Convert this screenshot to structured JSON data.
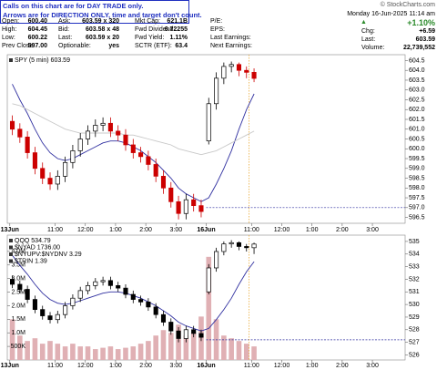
{
  "header": {
    "banner": [
      "Calls on this chart are for DAY TRADE only.",
      "Arrows are for DIRECTION ONLY, time and target don't count."
    ],
    "quote": [
      [
        [
          "Open:",
          "600.40"
        ],
        [
          "High:",
          "604.45"
        ],
        [
          "Low:",
          "600.22"
        ],
        [
          "Prev Close:",
          "597.00"
        ]
      ],
      [
        [
          "Ask:",
          "603.59 x 320"
        ],
        [
          "Bid:",
          "603.58 x 48"
        ],
        [
          "Last:",
          "603.59 x 20"
        ],
        [
          "Optionable:",
          "yes"
        ]
      ],
      [
        [
          "Mkt Cap:",
          "621.1B"
        ],
        [
          "Fwd Dividend:",
          "6.72255"
        ],
        [
          "Fwd Yield:",
          "1.11%"
        ],
        [
          "SCTR (ETF):",
          "63.4"
        ]
      ],
      [
        [
          "P/E:"
        ],
        [
          "EPS:"
        ],
        [
          "Last Earnings:"
        ],
        [
          "Next Earnings:"
        ]
      ]
    ],
    "site": "© StockCharts.com",
    "datetime": "Monday 16-Jun-2025 11:14 am",
    "change_pct": "+1.10%",
    "stats": [
      [
        "Chg:",
        "+6.59"
      ],
      [
        "Last:",
        "603.59"
      ],
      [
        "Volume:",
        "22,739,552"
      ]
    ]
  },
  "chart_data": [
    {
      "type": "candlestick",
      "legend": [
        "SPY (5 min) 603.59"
      ],
      "x": [
        1,
        4,
        7,
        10,
        13,
        16,
        19,
        22,
        25,
        28,
        31,
        34,
        37,
        40,
        43,
        46,
        49,
        52,
        55,
        58,
        61,
        64,
        67,
        70,
        73,
        76,
        79,
        82,
        85,
        88,
        91,
        94,
        97
      ],
      "open": [
        601.4,
        601.0,
        600.6,
        599.8,
        599.0,
        598.5,
        598.2,
        598.6,
        599.3,
        599.9,
        600.5,
        600.9,
        601.2,
        601.3,
        600.9,
        600.7,
        600.2,
        599.8,
        599.6,
        599.2,
        598.6,
        598.0,
        597.3,
        596.7,
        597.4,
        597.1,
        600.4,
        602.3,
        603.6,
        604.2,
        604.3,
        604.0,
        603.9
      ],
      "high": [
        601.7,
        601.3,
        600.9,
        600.1,
        599.3,
        598.8,
        598.9,
        599.6,
        600.2,
        600.8,
        601.2,
        601.5,
        601.6,
        601.6,
        601.2,
        601.0,
        600.5,
        600.1,
        599.9,
        599.5,
        598.9,
        598.3,
        597.6,
        597.7,
        597.7,
        597.4,
        602.6,
        603.9,
        604.4,
        604.45,
        604.4,
        604.2,
        604.1
      ],
      "low": [
        600.7,
        600.3,
        599.5,
        598.7,
        598.2,
        597.9,
        597.9,
        598.3,
        599.0,
        599.6,
        600.2,
        600.6,
        600.9,
        600.6,
        600.4,
        599.9,
        599.5,
        599.3,
        598.9,
        598.3,
        597.7,
        597.0,
        596.4,
        596.4,
        596.8,
        596.5,
        600.22,
        602.0,
        603.3,
        603.9,
        603.7,
        603.6,
        603.4
      ],
      "close": [
        601.0,
        600.6,
        599.8,
        599.0,
        598.5,
        598.2,
        598.6,
        599.3,
        599.9,
        600.5,
        600.9,
        601.2,
        601.3,
        600.9,
        600.7,
        600.2,
        599.8,
        599.6,
        599.2,
        598.6,
        598.0,
        597.3,
        596.7,
        597.4,
        597.1,
        596.8,
        602.3,
        603.6,
        604.2,
        604.3,
        604.0,
        603.9,
        603.59
      ],
      "up_color": "#000000",
      "down_color": "#cc0000",
      "overlays": [
        {
          "color": "#3030a0",
          "values": [
            603.3,
            602.5,
            601.8,
            601.0,
            600.3,
            599.8,
            599.5,
            599.4,
            599.5,
            599.7,
            599.9,
            600.1,
            600.3,
            600.4,
            600.4,
            600.3,
            600.1,
            599.9,
            599.6,
            599.3,
            598.9,
            598.5,
            598.0,
            597.7,
            597.5,
            597.3,
            597.5,
            598.2,
            599.0,
            599.9,
            601.0,
            602.0,
            602.8
          ]
        },
        {
          "color": "#c8c8c8",
          "values": [
            602.3,
            602.2,
            602.0,
            601.8,
            601.6,
            601.4,
            601.2,
            601.0,
            600.9,
            600.8,
            600.8,
            600.8,
            600.8,
            600.8,
            600.8,
            600.7,
            600.7,
            600.6,
            600.5,
            600.4,
            600.3,
            600.2,
            600.0,
            599.9,
            599.8,
            599.7,
            599.8,
            599.9,
            600.1,
            600.3,
            600.5,
            600.7,
            600.9
          ]
        }
      ],
      "hline": {
        "value": 597,
        "color": "#3030a0"
      },
      "vline": {
        "value": 95,
        "color": "#e8a020"
      },
      "xlim": [
        -1,
        157
      ],
      "xticks": [
        {
          "value": 0,
          "label": "13Jun"
        },
        {
          "value": 18,
          "label": "11:00"
        },
        {
          "value": 30,
          "label": "12:00"
        },
        {
          "value": 42,
          "label": "1:00"
        },
        {
          "value": 54,
          "label": "2:00"
        },
        {
          "value": 66,
          "label": "3:00"
        },
        {
          "value": 78,
          "label": "16Jun"
        },
        {
          "value": 96,
          "label": "11:00"
        },
        {
          "value": 108,
          "label": "12:00"
        },
        {
          "value": 120,
          "label": "1:00"
        },
        {
          "value": 132,
          "label": "2:00"
        },
        {
          "value": 144,
          "label": "3:00"
        }
      ],
      "ylim": [
        596.2,
        604.8
      ],
      "yticks": [
        596.5,
        {
          "value": 597,
          "label": "597.0"
        },
        597.5,
        {
          "value": 598,
          "label": "598.0"
        },
        598.5,
        {
          "value": 599,
          "label": "599.0"
        },
        599.5,
        {
          "value": 600,
          "label": "600.0"
        },
        600.5,
        {
          "value": 601,
          "label": "601.0"
        },
        601.5,
        {
          "value": 602,
          "label": "602.0"
        },
        602.5,
        {
          "value": 603,
          "label": "603.0"
        },
        603.5,
        {
          "value": 604,
          "label": "604.0"
        },
        604.5
      ]
    },
    {
      "type": "candlestick",
      "legend": [
        "QQQ 534.79",
        "$NYAD 1736.00",
        "$NYUPV:$NYDNV 3.29",
        "$TRIN 1.39"
      ],
      "x": [
        1,
        4,
        7,
        10,
        13,
        16,
        19,
        22,
        25,
        28,
        31,
        34,
        37,
        40,
        43,
        46,
        49,
        52,
        55,
        58,
        61,
        64,
        67,
        70,
        73,
        76,
        79,
        82,
        85,
        88,
        91,
        94,
        97
      ],
      "open": [
        532.0,
        531.6,
        531.2,
        530.4,
        529.6,
        529.1,
        528.8,
        529.2,
        529.9,
        530.5,
        531.1,
        531.5,
        531.8,
        531.9,
        531.5,
        531.3,
        530.8,
        530.4,
        530.2,
        529.8,
        529.2,
        528.6,
        527.9,
        527.3,
        528.0,
        527.7,
        531.0,
        532.9,
        534.2,
        534.8,
        534.9,
        534.6,
        534.5
      ],
      "high": [
        532.3,
        531.9,
        531.5,
        530.7,
        529.9,
        529.4,
        529.5,
        530.2,
        530.8,
        531.4,
        531.8,
        532.1,
        532.2,
        532.2,
        531.8,
        531.6,
        531.1,
        530.7,
        530.5,
        530.1,
        529.5,
        528.9,
        528.2,
        528.3,
        528.3,
        528.0,
        533.2,
        534.5,
        535.0,
        535.1,
        535.0,
        534.8,
        534.9
      ],
      "low": [
        531.3,
        530.9,
        530.1,
        529.3,
        528.8,
        528.5,
        528.5,
        528.9,
        529.6,
        530.2,
        530.8,
        531.2,
        531.5,
        531.2,
        531.0,
        530.5,
        530.1,
        529.9,
        529.5,
        528.9,
        528.3,
        527.6,
        527.0,
        527.0,
        527.4,
        527.1,
        530.8,
        532.6,
        533.9,
        534.5,
        534.3,
        534.2,
        534.0
      ],
      "close": [
        531.6,
        531.2,
        530.4,
        529.6,
        529.1,
        528.8,
        529.2,
        529.9,
        530.5,
        531.1,
        531.5,
        531.8,
        531.9,
        531.5,
        531.3,
        530.8,
        530.4,
        530.2,
        529.8,
        529.2,
        528.6,
        527.9,
        527.3,
        528.0,
        527.7,
        527.4,
        532.9,
        534.2,
        534.8,
        534.9,
        534.6,
        534.5,
        534.79
      ],
      "up_color": "#000000",
      "down_color": "#000000",
      "overlays": [
        {
          "color": "#3030a0",
          "values": [
            533.9,
            533.1,
            532.4,
            531.6,
            530.9,
            530.4,
            530.1,
            530.0,
            530.1,
            530.3,
            530.5,
            530.7,
            530.9,
            531.0,
            531.0,
            530.9,
            530.7,
            530.5,
            530.2,
            529.9,
            529.5,
            529.1,
            528.6,
            528.3,
            528.1,
            527.9,
            528.1,
            528.8,
            529.6,
            530.5,
            531.6,
            532.6,
            533.4
          ]
        }
      ],
      "hline": {
        "value": 527.2,
        "color": "#3030a0"
      },
      "vline": {
        "value": 95,
        "color": "#e8a020"
      },
      "volume": {
        "color": "#e0b0b4",
        "values": [
          1500000,
          900000,
          700000,
          800000,
          600000,
          700000,
          600000,
          500000,
          600000,
          500000,
          500000,
          400000,
          450000,
          500000,
          400000,
          450000,
          500000,
          600000,
          700000,
          900000,
          1100000,
          1000000,
          1300000,
          900000,
          1000000,
          1600000,
          3800000,
          1500000,
          900000,
          800000,
          700000,
          600000,
          500000
        ],
        "ylim": [
          0,
          4600000
        ],
        "yticks": [
          {
            "value": 500000,
            "label": "500K"
          },
          {
            "value": 1000000,
            "label": "1.0M"
          },
          {
            "value": 1500000,
            "label": "1.5M"
          },
          {
            "value": 2000000,
            "label": "2.0M"
          },
          {
            "value": 2500000,
            "label": "2.5M"
          },
          {
            "value": 3000000,
            "label": "3.0M"
          },
          {
            "value": 3500000,
            "label": "3.5M"
          },
          {
            "value": 4000000,
            "label": "4.0M"
          }
        ]
      },
      "xlim": [
        -1,
        157
      ],
      "xticks": [
        {
          "value": 0,
          "label": "13Jun"
        },
        {
          "value": 18,
          "label": "11:00"
        },
        {
          "value": 30,
          "label": "12:00"
        },
        {
          "value": 42,
          "label": "1:00"
        },
        {
          "value": 54,
          "label": "2:00"
        },
        {
          "value": 66,
          "label": "3:00"
        },
        {
          "value": 78,
          "label": "16Jun"
        },
        {
          "value": 96,
          "label": "11:00"
        },
        {
          "value": 108,
          "label": "12:00"
        },
        {
          "value": 120,
          "label": "1:00"
        },
        {
          "value": 132,
          "label": "2:00"
        },
        {
          "value": 144,
          "label": "3:00"
        }
      ],
      "ylim": [
        525.6,
        535.5
      ],
      "yticks": [
        526,
        527,
        528,
        529,
        530,
        531,
        532,
        533,
        534,
        535
      ]
    }
  ]
}
